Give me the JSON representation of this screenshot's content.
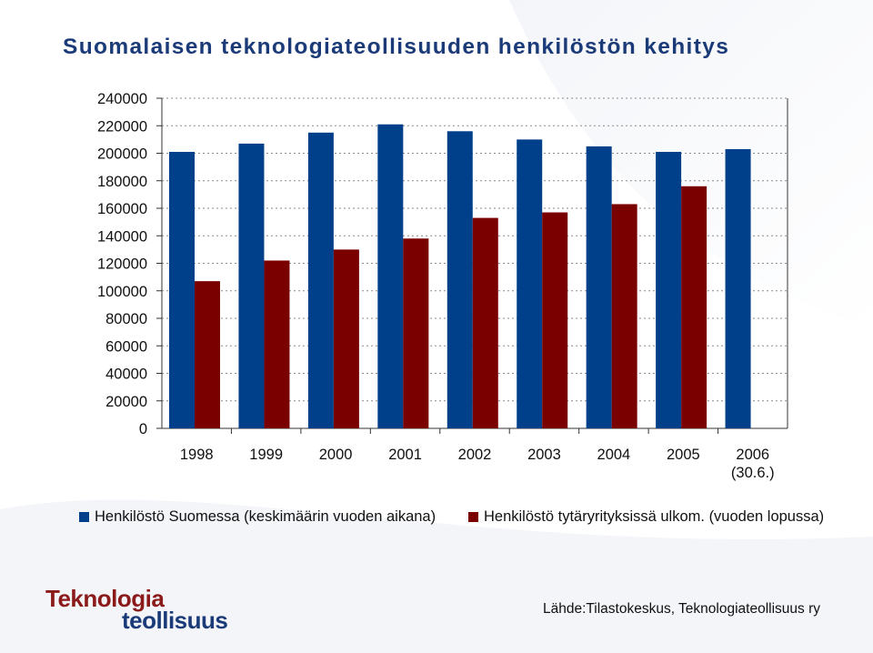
{
  "title": "Suomalaisen teknologiateollisuuden henkilöstön kehitys",
  "chart_data": {
    "type": "bar",
    "categories": [
      "1998",
      "1999",
      "2000",
      "2001",
      "2002",
      "2003",
      "2004",
      "2005",
      "2006\n(30.6.)"
    ],
    "series": [
      {
        "name": "Henkilöstö Suomessa (keskimäärin vuoden aikana)",
        "color": "#003f8a",
        "values": [
          201000,
          207000,
          215000,
          221000,
          216000,
          210000,
          205000,
          201000,
          203000
        ]
      },
      {
        "name": "Henkilöstö tytäryrityksissä ulkom. (vuoden lopussa)",
        "color": "#7a0000",
        "values": [
          107000,
          122000,
          130000,
          138000,
          153000,
          157000,
          163000,
          176000,
          null
        ]
      }
    ],
    "yticks": [
      "0",
      "20000",
      "40000",
      "60000",
      "80000",
      "100000",
      "120000",
      "140000",
      "160000",
      "180000",
      "200000",
      "220000",
      "240000"
    ],
    "ylim": [
      0,
      240000
    ],
    "grid": true,
    "legend_position": "bottom"
  },
  "logo": {
    "line1": "Teknologia",
    "line2": "teollisuus"
  },
  "source": "Lähde:Tilastokeskus, Teknologiateollisuus ry"
}
